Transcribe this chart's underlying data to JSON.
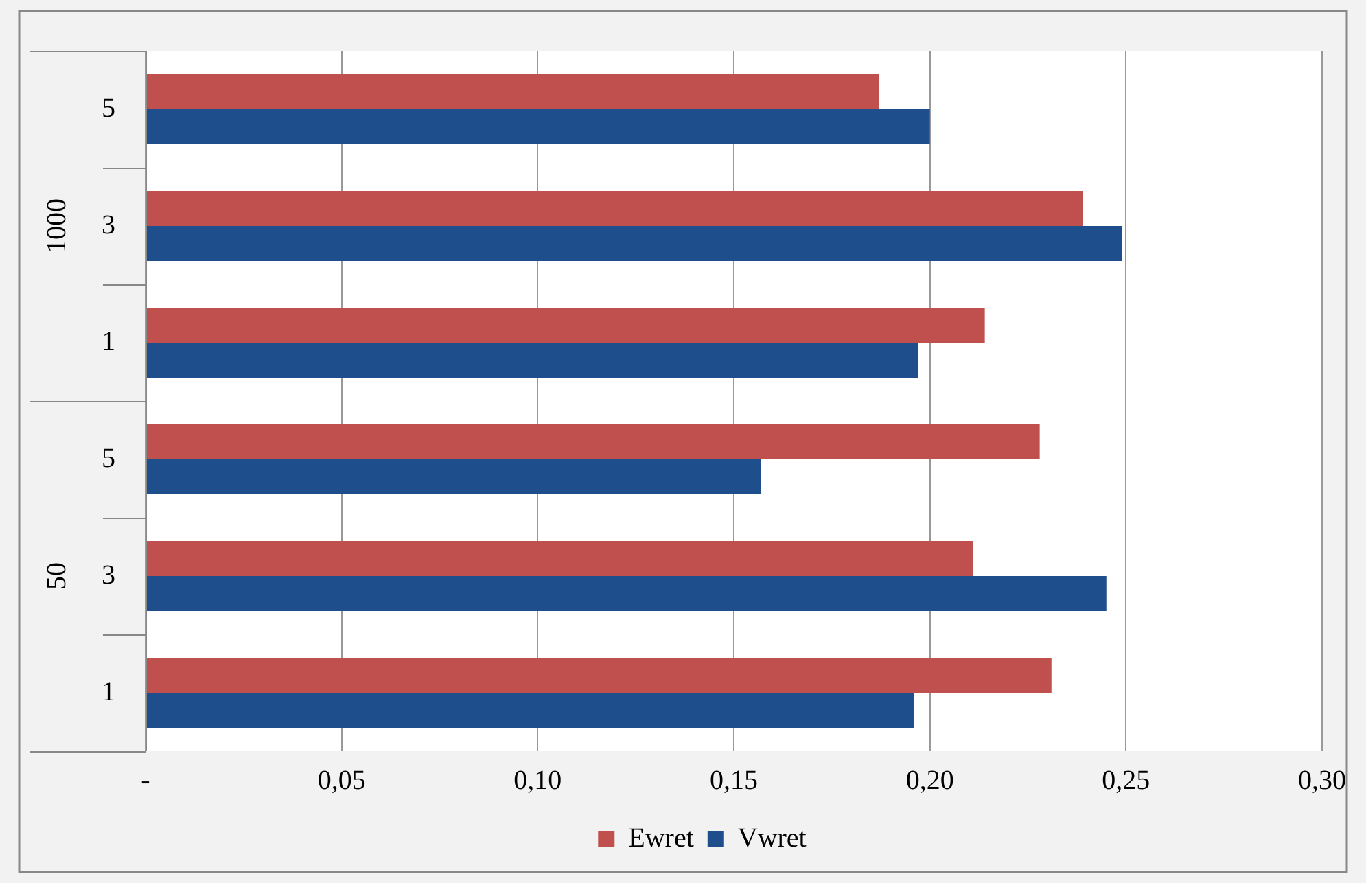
{
  "chart_data": {
    "type": "bar",
    "orientation": "horizontal",
    "categories": [
      "5",
      "3",
      "1",
      "5",
      "3",
      "1"
    ],
    "annotations": [
      "1000",
      "50"
    ],
    "series": [
      {
        "name": "Ewret",
        "color": "#c0504d",
        "values": [
          0.187,
          0.239,
          0.214,
          0.228,
          0.211,
          0.231
        ]
      },
      {
        "name": "Vwret",
        "color": "#1f4e8c",
        "values": [
          0.2,
          0.249,
          0.197,
          0.157,
          0.245,
          0.196
        ]
      }
    ],
    "xlim": [
      0,
      0.3
    ],
    "xticks": [
      {
        "value": 0,
        "label": "-"
      },
      {
        "value": 0.05,
        "label": "0,05"
      },
      {
        "value": 0.1,
        "label": "0,10"
      },
      {
        "value": 0.15,
        "label": "0,15"
      },
      {
        "value": 0.2,
        "label": "0,20"
      },
      {
        "value": 0.25,
        "label": "0,25"
      },
      {
        "value": 0.3,
        "label": "0,30"
      }
    ],
    "grid": "x",
    "legend": "bottom"
  }
}
